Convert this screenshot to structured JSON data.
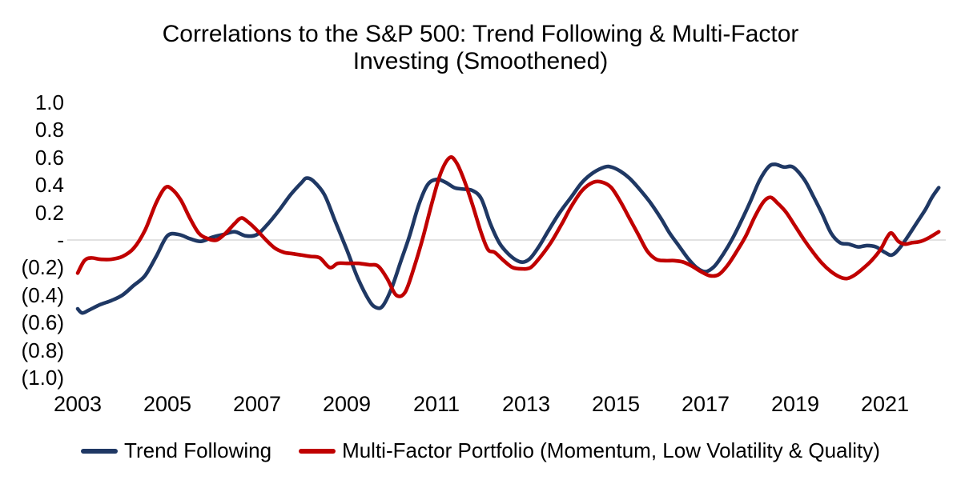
{
  "title": {
    "line1": "Correlations to the S&P 500: Trend Following & Multi-Factor",
    "line2": "Investing (Smoothened)"
  },
  "colors": {
    "trend_following": "#1f3864",
    "multi_factor": "#c00000",
    "zero_gridline": "#d9d9d9",
    "text": "#000000"
  },
  "legend": {
    "items": [
      {
        "label": "Trend Following",
        "color": "#1f3864"
      },
      {
        "label": "Multi-Factor Portfolio (Momentum, Low Volatility & Quality)",
        "color": "#c00000"
      }
    ]
  },
  "chart_data": {
    "type": "line",
    "title": "Correlations to the S&P 500: Trend Following & Multi-Factor Investing (Smoothened)",
    "xlabel": "",
    "ylabel": "",
    "grid": "zero-line-only",
    "legend_position": "bottom",
    "x_axis": {
      "tick_labels": [
        "2003",
        "2005",
        "2007",
        "2009",
        "2011",
        "2013",
        "2015",
        "2017",
        "2019",
        "2021"
      ],
      "tick_values": [
        2003,
        2005,
        2007,
        2009,
        2011,
        2013,
        2015,
        2017,
        2019,
        2021
      ],
      "range": [
        2003,
        2022.2
      ]
    },
    "y_axis": {
      "tick_labels": [
        "1.0",
        "0.8",
        "0.6",
        "0.4",
        "0.2",
        "-",
        "(0.2)",
        "(0.4)",
        "(0.6)",
        "(0.8)",
        "(1.0)"
      ],
      "tick_values": [
        1.0,
        0.8,
        0.6,
        0.4,
        0.2,
        0.0,
        -0.2,
        -0.4,
        -0.6,
        -0.8,
        -1.0
      ],
      "range": [
        -1.0,
        1.0
      ]
    },
    "series": [
      {
        "name": "Trend Following",
        "color": "#1f3864",
        "points": [
          [
            2003.0,
            -0.5
          ],
          [
            2003.1,
            -0.53
          ],
          [
            2003.25,
            -0.51
          ],
          [
            2003.5,
            -0.47
          ],
          [
            2003.75,
            -0.44
          ],
          [
            2004.0,
            -0.4
          ],
          [
            2004.25,
            -0.33
          ],
          [
            2004.5,
            -0.26
          ],
          [
            2004.75,
            -0.12
          ],
          [
            2005.0,
            0.03
          ],
          [
            2005.25,
            0.04
          ],
          [
            2005.5,
            0.01
          ],
          [
            2005.75,
            -0.01
          ],
          [
            2006.0,
            0.02
          ],
          [
            2006.25,
            0.04
          ],
          [
            2006.5,
            0.06
          ],
          [
            2006.75,
            0.03
          ],
          [
            2007.0,
            0.04
          ],
          [
            2007.25,
            0.12
          ],
          [
            2007.5,
            0.22
          ],
          [
            2007.75,
            0.33
          ],
          [
            2008.0,
            0.42
          ],
          [
            2008.1,
            0.45
          ],
          [
            2008.25,
            0.43
          ],
          [
            2008.5,
            0.33
          ],
          [
            2008.75,
            0.13
          ],
          [
            2009.0,
            -0.07
          ],
          [
            2009.25,
            -0.28
          ],
          [
            2009.5,
            -0.44
          ],
          [
            2009.65,
            -0.49
          ],
          [
            2009.8,
            -0.48
          ],
          [
            2010.0,
            -0.35
          ],
          [
            2010.2,
            -0.16
          ],
          [
            2010.4,
            0.03
          ],
          [
            2010.6,
            0.25
          ],
          [
            2010.8,
            0.4
          ],
          [
            2011.0,
            0.44
          ],
          [
            2011.2,
            0.42
          ],
          [
            2011.4,
            0.38
          ],
          [
            2011.6,
            0.37
          ],
          [
            2011.8,
            0.36
          ],
          [
            2012.0,
            0.3
          ],
          [
            2012.2,
            0.12
          ],
          [
            2012.4,
            -0.02
          ],
          [
            2012.6,
            -0.1
          ],
          [
            2012.8,
            -0.15
          ],
          [
            2012.95,
            -0.16
          ],
          [
            2013.1,
            -0.13
          ],
          [
            2013.3,
            -0.04
          ],
          [
            2013.5,
            0.07
          ],
          [
            2013.75,
            0.2
          ],
          [
            2014.0,
            0.31
          ],
          [
            2014.25,
            0.42
          ],
          [
            2014.5,
            0.49
          ],
          [
            2014.75,
            0.53
          ],
          [
            2014.9,
            0.53
          ],
          [
            2015.1,
            0.5
          ],
          [
            2015.3,
            0.45
          ],
          [
            2015.5,
            0.38
          ],
          [
            2015.75,
            0.28
          ],
          [
            2016.0,
            0.16
          ],
          [
            2016.2,
            0.05
          ],
          [
            2016.4,
            -0.04
          ],
          [
            2016.6,
            -0.13
          ],
          [
            2016.8,
            -0.2
          ],
          [
            2017.0,
            -0.23
          ],
          [
            2017.2,
            -0.19
          ],
          [
            2017.4,
            -0.1
          ],
          [
            2017.6,
            0.01
          ],
          [
            2017.8,
            0.14
          ],
          [
            2018.0,
            0.28
          ],
          [
            2018.2,
            0.43
          ],
          [
            2018.4,
            0.53
          ],
          [
            2018.55,
            0.55
          ],
          [
            2018.75,
            0.53
          ],
          [
            2018.95,
            0.53
          ],
          [
            2019.2,
            0.44
          ],
          [
            2019.4,
            0.32
          ],
          [
            2019.6,
            0.19
          ],
          [
            2019.8,
            0.05
          ],
          [
            2020.0,
            -0.02
          ],
          [
            2020.2,
            -0.03
          ],
          [
            2020.4,
            -0.05
          ],
          [
            2020.6,
            -0.04
          ],
          [
            2020.8,
            -0.05
          ],
          [
            2021.0,
            -0.09
          ],
          [
            2021.15,
            -0.11
          ],
          [
            2021.3,
            -0.07
          ],
          [
            2021.5,
            0.02
          ],
          [
            2021.7,
            0.12
          ],
          [
            2021.9,
            0.22
          ],
          [
            2022.05,
            0.31
          ],
          [
            2022.2,
            0.38
          ]
        ]
      },
      {
        "name": "Multi-Factor Portfolio (Momentum, Low Volatility & Quality)",
        "color": "#c00000",
        "points": [
          [
            2003.0,
            -0.24
          ],
          [
            2003.15,
            -0.15
          ],
          [
            2003.3,
            -0.13
          ],
          [
            2003.5,
            -0.14
          ],
          [
            2003.75,
            -0.14
          ],
          [
            2004.0,
            -0.12
          ],
          [
            2004.25,
            -0.06
          ],
          [
            2004.5,
            0.07
          ],
          [
            2004.75,
            0.27
          ],
          [
            2004.95,
            0.38
          ],
          [
            2005.1,
            0.37
          ],
          [
            2005.3,
            0.29
          ],
          [
            2005.5,
            0.16
          ],
          [
            2005.7,
            0.05
          ],
          [
            2005.9,
            0.01
          ],
          [
            2006.1,
            0.0
          ],
          [
            2006.3,
            0.05
          ],
          [
            2006.5,
            0.12
          ],
          [
            2006.65,
            0.16
          ],
          [
            2006.8,
            0.13
          ],
          [
            2007.0,
            0.07
          ],
          [
            2007.2,
            0.0
          ],
          [
            2007.4,
            -0.06
          ],
          [
            2007.6,
            -0.09
          ],
          [
            2007.8,
            -0.1
          ],
          [
            2008.0,
            -0.11
          ],
          [
            2008.2,
            -0.12
          ],
          [
            2008.4,
            -0.13
          ],
          [
            2008.62,
            -0.2
          ],
          [
            2008.8,
            -0.17
          ],
          [
            2009.0,
            -0.17
          ],
          [
            2009.25,
            -0.17
          ],
          [
            2009.5,
            -0.18
          ],
          [
            2009.7,
            -0.19
          ],
          [
            2009.9,
            -0.28
          ],
          [
            2010.1,
            -0.4
          ],
          [
            2010.3,
            -0.38
          ],
          [
            2010.5,
            -0.2
          ],
          [
            2010.7,
            0.02
          ],
          [
            2010.9,
            0.27
          ],
          [
            2011.1,
            0.49
          ],
          [
            2011.3,
            0.6
          ],
          [
            2011.45,
            0.56
          ],
          [
            2011.6,
            0.45
          ],
          [
            2011.8,
            0.26
          ],
          [
            2012.0,
            0.05
          ],
          [
            2012.15,
            -0.07
          ],
          [
            2012.3,
            -0.09
          ],
          [
            2012.5,
            -0.15
          ],
          [
            2012.7,
            -0.2
          ],
          [
            2012.9,
            -0.21
          ],
          [
            2013.1,
            -0.2
          ],
          [
            2013.3,
            -0.13
          ],
          [
            2013.55,
            -0.02
          ],
          [
            2013.8,
            0.12
          ],
          [
            2014.0,
            0.24
          ],
          [
            2014.25,
            0.36
          ],
          [
            2014.5,
            0.42
          ],
          [
            2014.7,
            0.42
          ],
          [
            2014.9,
            0.38
          ],
          [
            2015.1,
            0.28
          ],
          [
            2015.3,
            0.16
          ],
          [
            2015.5,
            0.04
          ],
          [
            2015.7,
            -0.08
          ],
          [
            2015.9,
            -0.14
          ],
          [
            2016.1,
            -0.15
          ],
          [
            2016.3,
            -0.15
          ],
          [
            2016.5,
            -0.16
          ],
          [
            2016.7,
            -0.19
          ],
          [
            2016.9,
            -0.23
          ],
          [
            2017.1,
            -0.26
          ],
          [
            2017.3,
            -0.25
          ],
          [
            2017.5,
            -0.18
          ],
          [
            2017.7,
            -0.08
          ],
          [
            2017.9,
            0.03
          ],
          [
            2018.1,
            0.17
          ],
          [
            2018.3,
            0.28
          ],
          [
            2018.45,
            0.31
          ],
          [
            2018.6,
            0.27
          ],
          [
            2018.8,
            0.2
          ],
          [
            2019.0,
            0.1
          ],
          [
            2019.2,
            0.0
          ],
          [
            2019.4,
            -0.09
          ],
          [
            2019.6,
            -0.17
          ],
          [
            2019.8,
            -0.23
          ],
          [
            2020.0,
            -0.27
          ],
          [
            2020.15,
            -0.28
          ],
          [
            2020.3,
            -0.26
          ],
          [
            2020.5,
            -0.21
          ],
          [
            2020.7,
            -0.15
          ],
          [
            2020.9,
            -0.07
          ],
          [
            2021.05,
            0.02
          ],
          [
            2021.15,
            0.05
          ],
          [
            2021.3,
            -0.01
          ],
          [
            2021.45,
            -0.03
          ],
          [
            2021.6,
            -0.02
          ],
          [
            2021.8,
            -0.01
          ],
          [
            2022.0,
            0.02
          ],
          [
            2022.2,
            0.06
          ]
        ]
      }
    ]
  }
}
